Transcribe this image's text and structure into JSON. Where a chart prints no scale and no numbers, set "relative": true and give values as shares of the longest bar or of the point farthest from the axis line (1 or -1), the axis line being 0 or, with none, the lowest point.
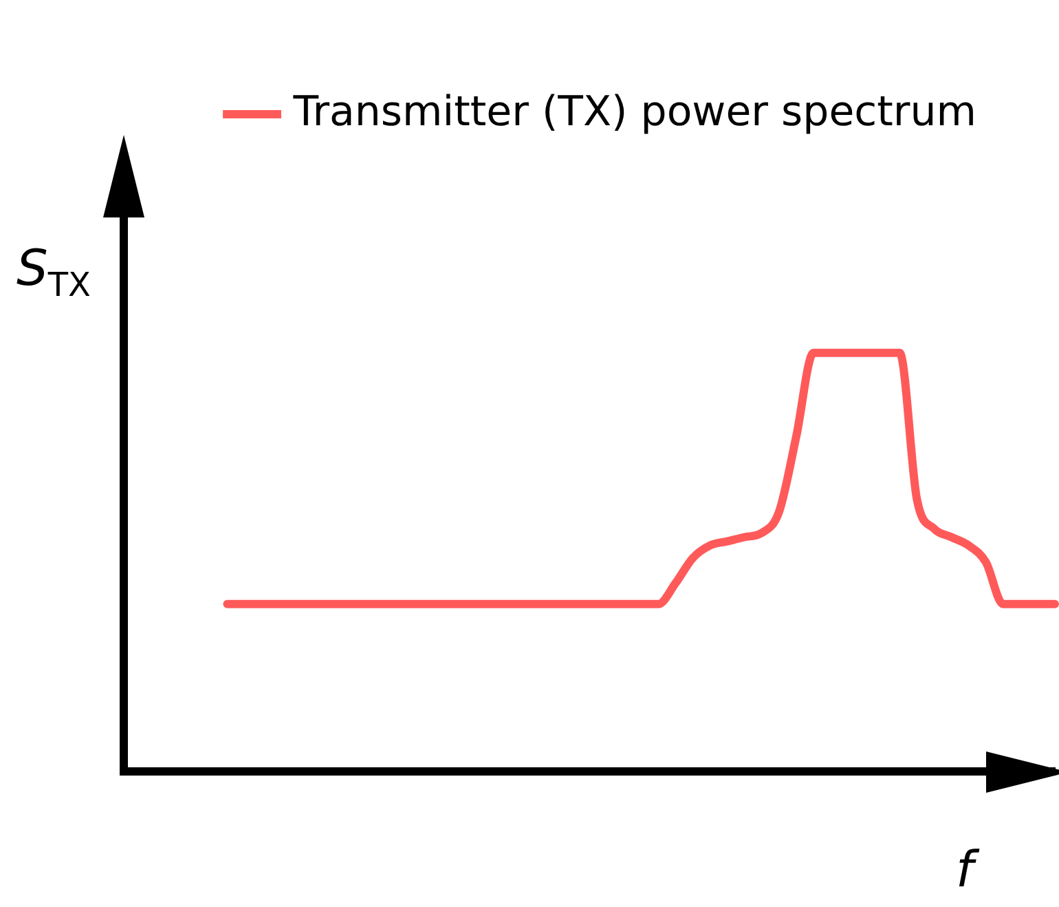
{
  "chart_data": {
    "type": "line",
    "relative": true,
    "xlabel": "f",
    "ylabel": "S$_{TX}$",
    "legend": "top",
    "marker": "none",
    "line_style": "solid",
    "grid": false,
    "categories": [
      null,
      null,
      null,
      null,
      null,
      null,
      null,
      null,
      null,
      null,
      null,
      null,
      null,
      null,
      null,
      null,
      null,
      null,
      null,
      null,
      null,
      null,
      null,
      null,
      null,
      null,
      null,
      null,
      null,
      null,
      null,
      null,
      null,
      null,
      null,
      null,
      null,
      null,
      null,
      null,
      null,
      null,
      null,
      null,
      null,
      null,
      null,
      null,
      null,
      null,
      null,
      null,
      null,
      null,
      null
    ],
    "series": [
      {
        "name": "Transmitter (TX) power spectrum",
        "color": "#ff5a5a",
        "values": [
          null,
          null,
          null,
          null,
          null,
          null,
          0.4,
          0.4,
          0.4,
          0.4,
          0.4,
          0.4,
          0.4,
          0.4,
          0.4,
          0.4,
          0.4,
          0.4,
          0.4,
          0.4,
          0.4,
          0.4,
          0.4,
          0.4,
          0.4,
          0.4,
          0.4,
          0.4,
          0.4,
          0.4,
          0.4,
          0.4,
          0.45,
          0.51,
          0.54,
          0.55,
          0.56,
          0.57,
          0.62,
          0.8,
          1,
          1,
          1,
          1,
          1,
          1,
          0.65,
          0.58,
          0.56,
          0.54,
          0.5,
          0.4,
          0.4,
          0.4,
          0.4
        ]
      }
    ]
  }
}
